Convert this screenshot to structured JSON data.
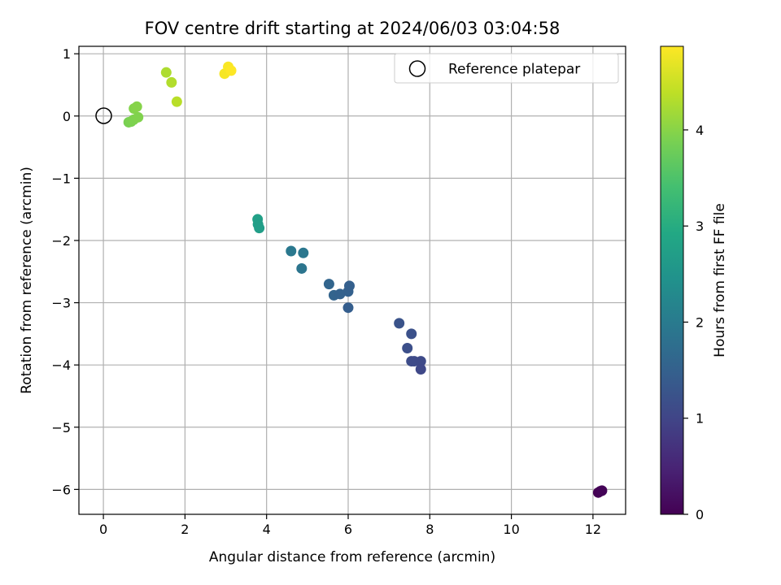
{
  "chart_data": {
    "type": "scatter",
    "title": "FOV centre drift starting at 2024/06/03 03:04:58",
    "xlabel": "Angular distance from reference (arcmin)",
    "ylabel": "Rotation from reference (arcmin)",
    "xlim": [
      -0.6,
      12.8
    ],
    "ylim": [
      -6.4,
      1.12
    ],
    "xticks": [
      0,
      2,
      4,
      6,
      8,
      10,
      12
    ],
    "yticks": [
      -6,
      -5,
      -4,
      -3,
      -2,
      -1,
      0,
      1
    ],
    "grid": true,
    "legend": {
      "position": "top-right",
      "entries": [
        "Reference platepar"
      ]
    },
    "reference_point": {
      "name": "Reference platepar",
      "x": 0,
      "y": 0,
      "marker": "open-circle"
    },
    "colorbar": {
      "label": "Hours from first FF file",
      "colormap": "viridis",
      "range": [
        0,
        4.87
      ],
      "ticks": [
        0,
        1,
        2,
        3,
        4
      ]
    },
    "points": [
      {
        "x": 12.13,
        "y": -6.05,
        "c": 0.0
      },
      {
        "x": 12.18,
        "y": -6.03,
        "c": 0.02
      },
      {
        "x": 12.22,
        "y": -6.02,
        "c": 0.04
      },
      {
        "x": 7.25,
        "y": -3.33,
        "c": 1.25
      },
      {
        "x": 7.55,
        "y": -3.5,
        "c": 1.2
      },
      {
        "x": 7.45,
        "y": -3.73,
        "c": 1.18
      },
      {
        "x": 7.55,
        "y": -3.94,
        "c": 1.12
      },
      {
        "x": 7.62,
        "y": -3.94,
        "c": 1.1
      },
      {
        "x": 7.78,
        "y": -3.94,
        "c": 1.08
      },
      {
        "x": 7.78,
        "y": -4.07,
        "c": 1.05
      },
      {
        "x": 5.53,
        "y": -2.7,
        "c": 1.58
      },
      {
        "x": 5.65,
        "y": -2.88,
        "c": 1.55
      },
      {
        "x": 5.8,
        "y": -2.86,
        "c": 1.52
      },
      {
        "x": 6.0,
        "y": -2.82,
        "c": 1.5
      },
      {
        "x": 6.03,
        "y": -2.73,
        "c": 1.48
      },
      {
        "x": 6.0,
        "y": -3.08,
        "c": 1.45
      },
      {
        "x": 4.6,
        "y": -2.17,
        "c": 1.95
      },
      {
        "x": 4.9,
        "y": -2.2,
        "c": 1.92
      },
      {
        "x": 4.86,
        "y": -2.45,
        "c": 1.88
      },
      {
        "x": 3.78,
        "y": -1.66,
        "c": 2.75
      },
      {
        "x": 3.79,
        "y": -1.74,
        "c": 2.72
      },
      {
        "x": 3.82,
        "y": -1.8,
        "c": 2.7
      },
      {
        "x": 0.62,
        "y": -0.1,
        "c": 3.88
      },
      {
        "x": 0.68,
        "y": -0.09,
        "c": 3.9
      },
      {
        "x": 0.74,
        "y": -0.06,
        "c": 3.92
      },
      {
        "x": 0.85,
        "y": -0.02,
        "c": 3.94
      },
      {
        "x": 0.75,
        "y": 0.12,
        "c": 3.96
      },
      {
        "x": 0.82,
        "y": 0.15,
        "c": 3.98
      },
      {
        "x": 1.8,
        "y": 0.23,
        "c": 4.35
      },
      {
        "x": 1.67,
        "y": 0.54,
        "c": 4.3
      },
      {
        "x": 1.54,
        "y": 0.7,
        "c": 4.27
      },
      {
        "x": 2.97,
        "y": 0.68,
        "c": 4.82
      },
      {
        "x": 3.06,
        "y": 0.79,
        "c": 4.84
      },
      {
        "x": 3.13,
        "y": 0.73,
        "c": 4.87
      }
    ]
  }
}
